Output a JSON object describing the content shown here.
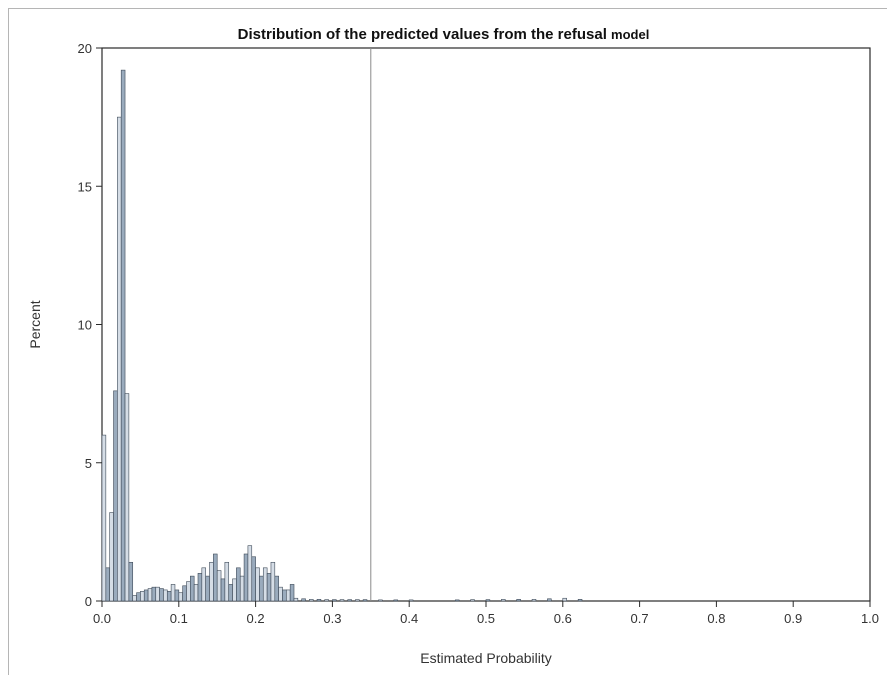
{
  "chart_data": {
    "type": "bar",
    "title_main": "Distribution of the predicted values from the refusal",
    "title_tail": "model",
    "xlabel": "Estimated Probability",
    "ylabel": "Percent",
    "xlim": [
      0.0,
      1.0
    ],
    "ylim": [
      0,
      20
    ],
    "xticks": [
      "0.0",
      "0.1",
      "0.2",
      "0.3",
      "0.4",
      "0.5",
      "0.6",
      "0.7",
      "0.8",
      "0.9",
      "1.0"
    ],
    "yticks": [
      "0",
      "5",
      "10",
      "15",
      "20"
    ],
    "reference_line_x": 0.35,
    "bar_width": 0.005,
    "bin_start": [
      0.0,
      0.005,
      0.01,
      0.015,
      0.02,
      0.025,
      0.03,
      0.035,
      0.04,
      0.045,
      0.05,
      0.055,
      0.06,
      0.065,
      0.07,
      0.075,
      0.08,
      0.085,
      0.09,
      0.095,
      0.1,
      0.105,
      0.11,
      0.115,
      0.12,
      0.125,
      0.13,
      0.135,
      0.14,
      0.145,
      0.15,
      0.155,
      0.16,
      0.165,
      0.17,
      0.175,
      0.18,
      0.185,
      0.19,
      0.195,
      0.2,
      0.205,
      0.21,
      0.215,
      0.22,
      0.225,
      0.23,
      0.235,
      0.24,
      0.245,
      0.25,
      0.26,
      0.27,
      0.28,
      0.29,
      0.3,
      0.31,
      0.32,
      0.33,
      0.34,
      0.36,
      0.38,
      0.4,
      0.46,
      0.48,
      0.5,
      0.52,
      0.54,
      0.56,
      0.58,
      0.6,
      0.62
    ],
    "values": [
      6.0,
      1.2,
      3.2,
      7.6,
      17.5,
      19.2,
      7.5,
      1.4,
      0.2,
      0.3,
      0.35,
      0.4,
      0.45,
      0.5,
      0.5,
      0.45,
      0.4,
      0.35,
      0.6,
      0.4,
      0.3,
      0.55,
      0.7,
      0.9,
      0.6,
      1.0,
      1.2,
      0.9,
      1.4,
      1.7,
      1.1,
      0.8,
      1.4,
      0.6,
      0.8,
      1.2,
      0.9,
      1.7,
      2.0,
      1.6,
      1.2,
      0.9,
      1.2,
      1.0,
      1.4,
      0.9,
      0.5,
      0.4,
      0.4,
      0.6,
      0.1,
      0.08,
      0.06,
      0.06,
      0.05,
      0.05,
      0.05,
      0.05,
      0.05,
      0.05,
      0.04,
      0.04,
      0.04,
      0.04,
      0.05,
      0.05,
      0.06,
      0.06,
      0.06,
      0.08,
      0.1,
      0.06
    ],
    "grid": false,
    "colors": {
      "bar_fill_a": "#d5dde6",
      "bar_fill_b": "#9aabbd",
      "bar_stroke": "#3e4a58",
      "reference_line": "#8a8a8a",
      "axis": "#2a2a2a"
    }
  }
}
